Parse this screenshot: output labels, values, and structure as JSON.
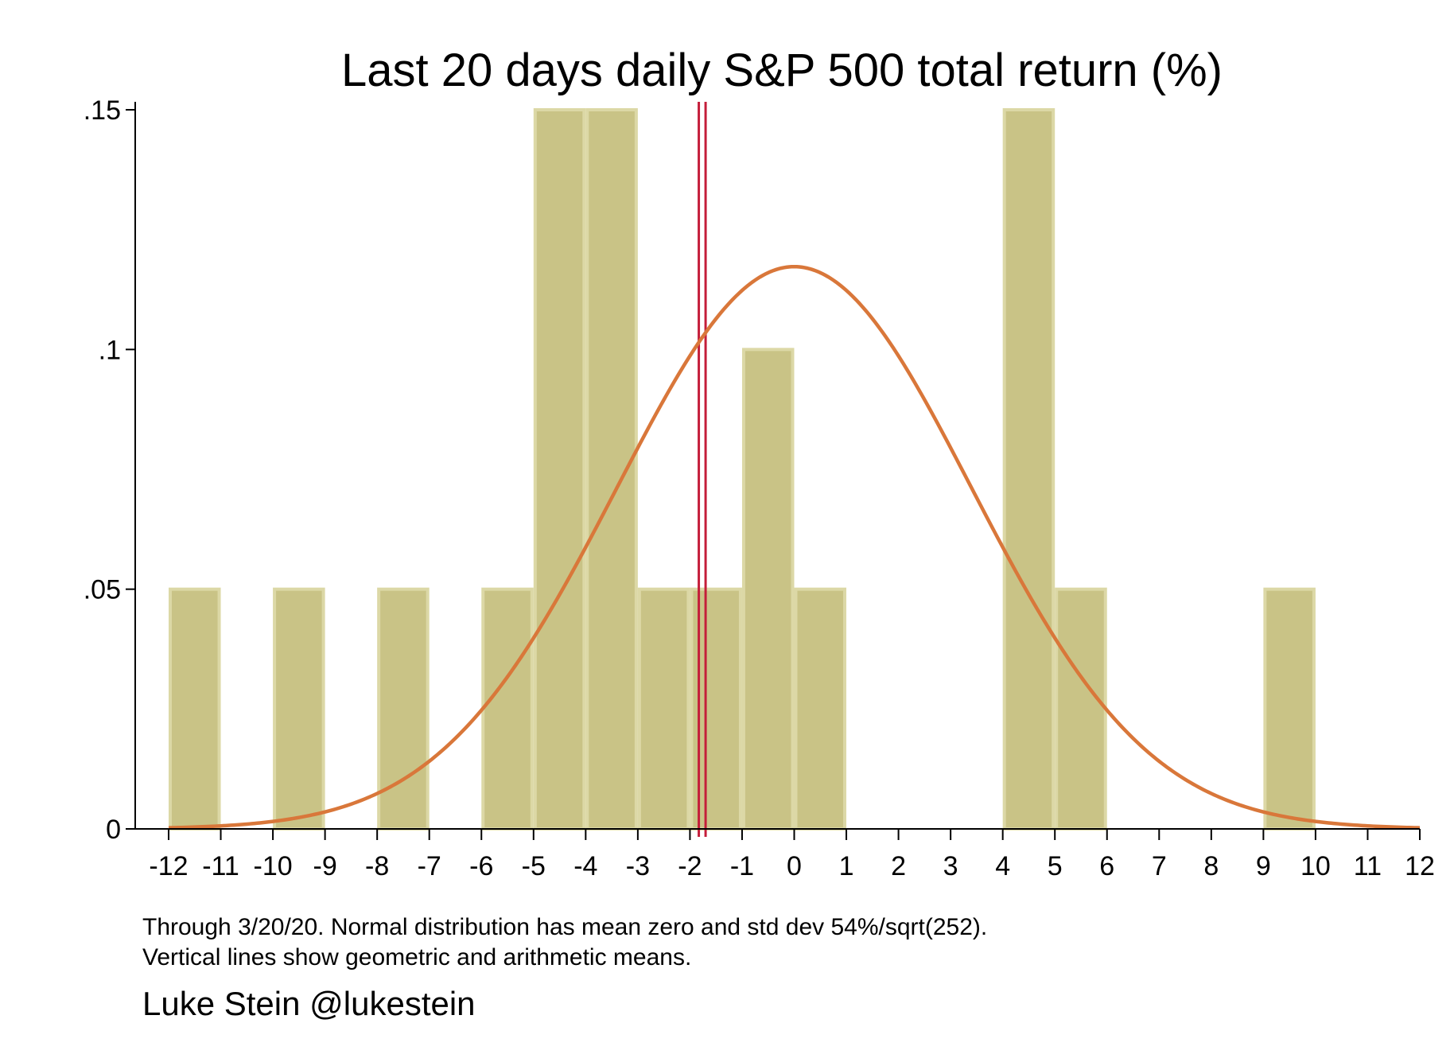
{
  "chart_data": {
    "type": "bar",
    "subtype": "histogram",
    "title": "Last 20 days daily S&P 500 total return (%)",
    "xlabel": "",
    "ylabel": "",
    "xlim": [
      -12,
      12
    ],
    "ylim": [
      0,
      0.15
    ],
    "x_ticks": [
      -12,
      -11,
      -10,
      -9,
      -8,
      -7,
      -6,
      -5,
      -4,
      -3,
      -2,
      -1,
      0,
      1,
      2,
      3,
      4,
      5,
      6,
      7,
      8,
      9,
      10,
      11,
      12
    ],
    "x_tick_labels": [
      "-12",
      "-11",
      "-10",
      "-9",
      "-8",
      "-7",
      "-6",
      "-5",
      "-4",
      "-3",
      "-2",
      "-1",
      "0",
      "1",
      "2",
      "3",
      "4",
      "5",
      "6",
      "7",
      "8",
      "9",
      "10",
      "11",
      "12"
    ],
    "y_ticks": [
      0,
      0.05,
      0.1,
      0.15
    ],
    "y_tick_labels": [
      "0",
      ".05",
      ".1",
      ".15"
    ],
    "bins": [
      {
        "x0": -12,
        "x1": -11,
        "density": 0.05
      },
      {
        "x0": -10,
        "x1": -9,
        "density": 0.05
      },
      {
        "x0": -8,
        "x1": -7,
        "density": 0.05
      },
      {
        "x0": -6,
        "x1": -5,
        "density": 0.05
      },
      {
        "x0": -5,
        "x1": -4,
        "density": 0.15
      },
      {
        "x0": -4,
        "x1": -3,
        "density": 0.15
      },
      {
        "x0": -3,
        "x1": -2,
        "density": 0.05
      },
      {
        "x0": -2,
        "x1": -1,
        "density": 0.05
      },
      {
        "x0": -1,
        "x1": 0,
        "density": 0.1
      },
      {
        "x0": 0,
        "x1": 1,
        "density": 0.05
      },
      {
        "x0": 4,
        "x1": 5,
        "density": 0.15
      },
      {
        "x0": 5,
        "x1": 6,
        "density": 0.05
      },
      {
        "x0": 9,
        "x1": 10,
        "density": 0.05
      }
    ],
    "normal_curve": {
      "mean": 0,
      "sd": 3.4017
    },
    "vertical_lines": [
      {
        "x": -1.83,
        "color": "#c41e3a"
      },
      {
        "x": -1.7,
        "color": "#c41e3a"
      }
    ],
    "bar_color": "#c9c386",
    "bar_edge_color": "#dcd8a6",
    "curve_color": "#d9773a",
    "grid": false,
    "legend": "none"
  },
  "notes": {
    "line1": "Through 3/20/20. Normal distribution has mean zero and std dev 54%/sqrt(252).",
    "line2": "Vertical lines show geometric and arithmetic means."
  },
  "credit": "Luke Stein @lukestein"
}
